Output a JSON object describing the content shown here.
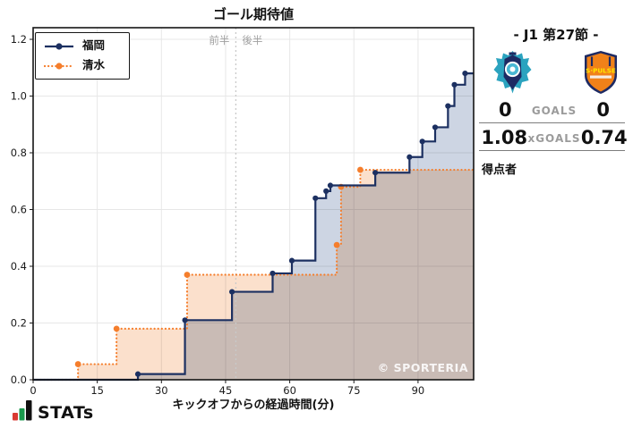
{
  "chart_data": {
    "type": "step-line",
    "title": "ゴール期待値",
    "xlabel": "キックオフからの経過時間(分)",
    "xlim": [
      0,
      103
    ],
    "ylim": [
      0,
      1.241
    ],
    "grid": true,
    "legend_position": "top-left",
    "watermark": "© SPORTERIA",
    "xticks": {
      "values": [
        0,
        15,
        30,
        45,
        60,
        75,
        90
      ],
      "labels": [
        "0",
        "15",
        "30",
        "45",
        "60",
        "75",
        "90"
      ]
    },
    "yticks": {
      "values": [
        0,
        0.2,
        0.4,
        0.6,
        0.8,
        1.0,
        1.2
      ],
      "labels": [
        "0.0",
        "0.2",
        "0.4",
        "0.6",
        "0.8",
        "1.0",
        "1.2"
      ]
    },
    "halftime": {
      "x": 47.4,
      "first_half_label": "前半",
      "second_half_label": "後半"
    },
    "series": [
      {
        "name": "福岡",
        "line_style": "solid",
        "line_color": "#1c3061",
        "fill_color": "#cdd5e3",
        "final_xg": 1.08,
        "end_x": 103,
        "points": [
          [
            0,
            0
          ],
          [
            24.5,
            0.02
          ],
          [
            35.5,
            0.21
          ],
          [
            46.5,
            0.31
          ],
          [
            56,
            0.375
          ],
          [
            60.5,
            0.42
          ],
          [
            66,
            0.64
          ],
          [
            68.5,
            0.665
          ],
          [
            69.5,
            0.685
          ],
          [
            80,
            0.73
          ],
          [
            88,
            0.785
          ],
          [
            91,
            0.84
          ],
          [
            94,
            0.89
          ],
          [
            97,
            0.965
          ],
          [
            98.5,
            1.04
          ],
          [
            101,
            1.08
          ]
        ]
      },
      {
        "name": "清水",
        "line_style": "dotted",
        "line_color": "#f57e2c",
        "fill_color": "#fbe0cc",
        "final_xg": 0.74,
        "end_x": 103,
        "points": [
          [
            0,
            0
          ],
          [
            10.5,
            0.055
          ],
          [
            19.5,
            0.18
          ],
          [
            36,
            0.37
          ],
          [
            71,
            0.475
          ],
          [
            72,
            0.68
          ],
          [
            76.5,
            0.74
          ]
        ]
      }
    ]
  },
  "side_panel": {
    "round_title": "- J1 第27節 -",
    "teams": [
      {
        "name": "福岡",
        "crest": "avispa-fukuoka-crest"
      },
      {
        "name": "清水",
        "crest": "shimizu-s-pulse-crest"
      }
    ],
    "goals": {
      "home": "0",
      "label": "GOALS",
      "away": "0"
    },
    "xgoals": {
      "home": "1.08",
      "label": "xGOALS",
      "away": "0.74"
    },
    "scorers_label": "得点者",
    "scorers": []
  },
  "footer": {
    "brand": "STATs"
  },
  "colors": {
    "home_line": "#1c3061",
    "home_fill": "#cdd5e3",
    "away_line": "#f57e2c",
    "away_fill": "#fbe0cc",
    "grid_line": "#e7e7e7",
    "halftime_line": "#c9c9c9",
    "half_label_text": "#a0a0a0",
    "axis_text": "#1a1a1a",
    "border": "#151515",
    "watermark_text": "#ffffff",
    "muted_text": "#9b9b9b",
    "brand_red": "#d93a32",
    "brand_green": "#199a4c",
    "brand_black": "#111111",
    "spulse_orange": "#f08119",
    "spulse_yellow": "#ffe600",
    "avispa_navy": "#1d2a63",
    "avispa_teal": "#2ba3bf"
  }
}
